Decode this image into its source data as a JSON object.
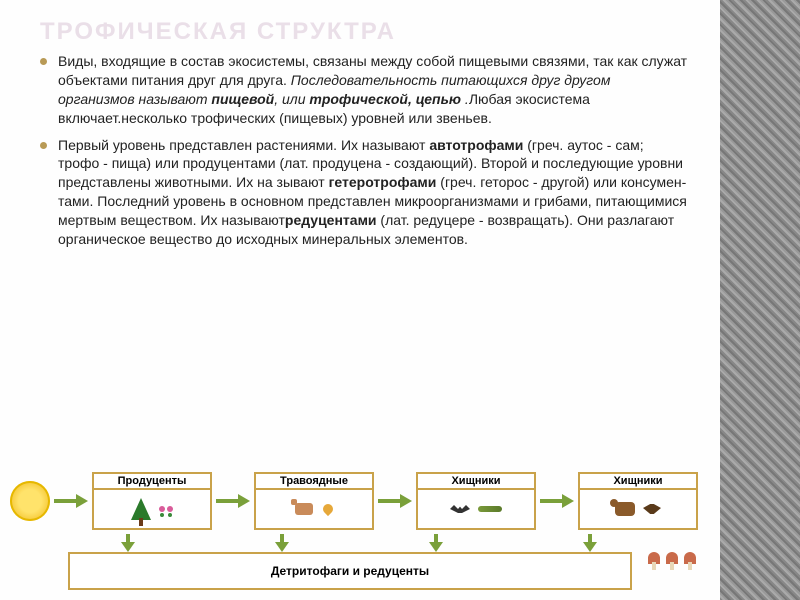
{
  "colors": {
    "title": "#eadfe8",
    "bullet": "#b89a56",
    "arrow": "#7aa03a",
    "box_border": "#c9a24a",
    "box_fill": "#ffffff",
    "sidebar_pattern": "#8a8a8a"
  },
  "title": "ТРОФИЧЕСКАЯ СТРУКТРА",
  "paragraphs": [
    {
      "runs": [
        {
          "t": "Виды, входящие в состав экосистемы, связаны между собой пищевыми связями, так как служат объектами питания друг для друга. "
        },
        {
          "t": "Последовательность питающихся друг другом организмов называют ",
          "style": "italic"
        },
        {
          "t": "пищевой",
          "style": "bold italic"
        },
        {
          "t": ", или ",
          "style": "italic"
        },
        {
          "t": "трофической, цепью",
          "style": "bold italic"
        },
        {
          "t": " .",
          "style": "italic"
        },
        {
          "t": "Любая экосистема включает.несколько трофических (пищевых) уровней или звеньев."
        }
      ]
    },
    {
      "runs": [
        {
          "t": "Первый уровень представлен растениями. Их называют "
        },
        {
          "t": "автотрофами",
          "style": "bold"
        },
        {
          "t": " (греч. аутос - сам; трофо - пища) или продуцентами (лат. продуцена - создающий). Второй и последующие уровни представлены животными. Их на зывают "
        },
        {
          "t": "гетеротрофами",
          "style": "bold"
        },
        {
          "t": " (греч. геторос - другой) или консумен-тами. Последний уровень в основном представлен микроорганизмами и грибами, питающимися мертвым веществом. Их называют"
        },
        {
          "t": "редуцентами",
          "style": "bold"
        },
        {
          "t": " (лат. редуцере - возвращать). Они разлагают органическое вещество до исходных минеральных элементов."
        }
      ]
    }
  ],
  "diagram": {
    "boxes": [
      {
        "label": "Продуценты"
      },
      {
        "label": "Травоядные"
      },
      {
        "label": "Хищники"
      },
      {
        "label": "Хищники"
      }
    ],
    "bottom_label": "Детритофаги и редуценты"
  }
}
